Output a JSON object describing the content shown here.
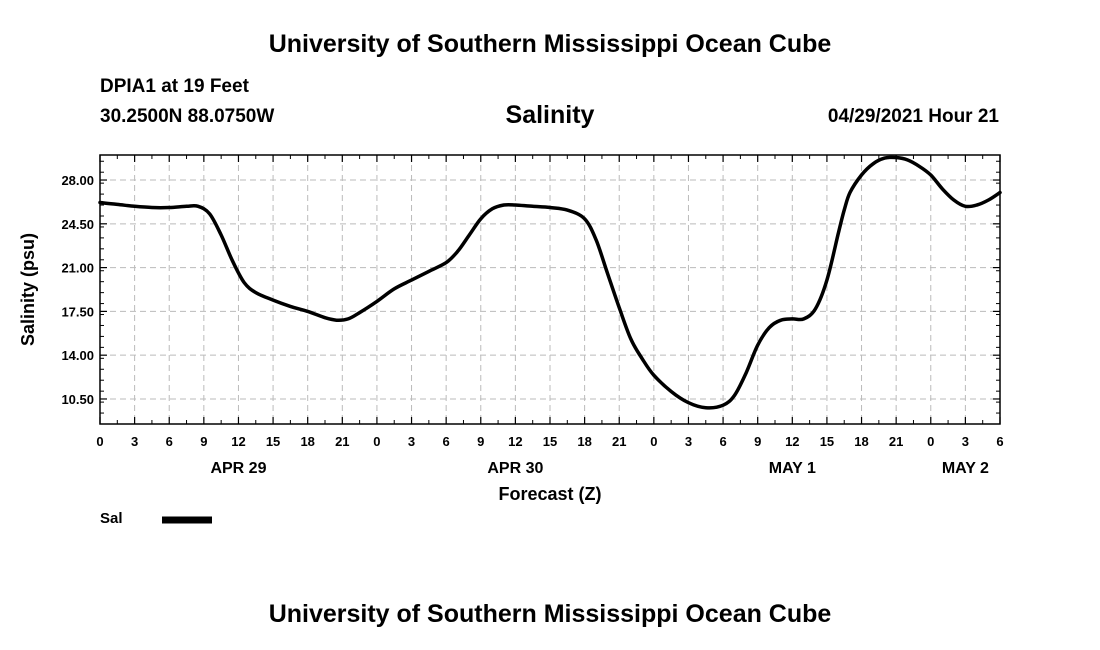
{
  "header": {
    "title_top": "University of Southern Mississippi Ocean Cube",
    "station": "DPIA1 at 19 Feet",
    "coords": "30.2500N  88.0750W",
    "datetime": "04/29/2021 Hour 21"
  },
  "footer": {
    "title_bottom": "University of Southern Mississippi Ocean Cube"
  },
  "legend": {
    "label": "Sal",
    "color": "#000000"
  },
  "chart_data": {
    "type": "line",
    "title": "Salinity",
    "xlabel": "Forecast (Z)",
    "ylabel": "Salinity (psu)",
    "xlim": [
      0,
      78
    ],
    "ylim": [
      8.5,
      30.0
    ],
    "grid": true,
    "line_color": "#000000",
    "x_ticks": [
      0,
      3,
      6,
      9,
      12,
      15,
      18,
      21,
      24,
      27,
      30,
      33,
      36,
      39,
      42,
      45,
      48,
      51,
      54,
      57,
      60,
      63,
      66,
      69,
      72,
      75,
      78
    ],
    "x_tick_labels": [
      "0",
      "3",
      "6",
      "9",
      "12",
      "15",
      "18",
      "21",
      "0",
      "3",
      "6",
      "9",
      "12",
      "15",
      "18",
      "21",
      "0",
      "3",
      "6",
      "9",
      "12",
      "15",
      "18",
      "21",
      "0",
      "3",
      "6"
    ],
    "y_ticks": [
      10.5,
      14.0,
      17.5,
      21.0,
      24.5,
      28.0
    ],
    "y_tick_labels": [
      "10.50",
      "14.00",
      "17.50",
      "21.00",
      "24.50",
      "28.00"
    ],
    "date_labels": [
      {
        "x": 12,
        "label": "APR 29"
      },
      {
        "x": 36,
        "label": "APR 30"
      },
      {
        "x": 60,
        "label": "MAY 1"
      },
      {
        "x": 75,
        "label": "MAY 2"
      }
    ],
    "series": [
      {
        "name": "Sal",
        "x": [
          0,
          1.5,
          3,
          4.5,
          6,
          7.5,
          8.5,
          9.5,
          10.5,
          11.5,
          12.5,
          13.5,
          15,
          16.5,
          18,
          19.5,
          20.5,
          21.5,
          22.5,
          24,
          25.5,
          27,
          28.5,
          30,
          31,
          32,
          33,
          34,
          35,
          36,
          37.5,
          39,
          40.5,
          42,
          43,
          44,
          45,
          46,
          47,
          48,
          49.5,
          51,
          52.5,
          54,
          55,
          56,
          57,
          58,
          59,
          60,
          61,
          62,
          63,
          64,
          64.5,
          65,
          66,
          67,
          68,
          69,
          70,
          71,
          72,
          73,
          74,
          75,
          76,
          77,
          78
        ],
        "values": [
          26.2,
          26.05,
          25.9,
          25.8,
          25.8,
          25.9,
          25.9,
          25.3,
          23.6,
          21.5,
          19.8,
          19.0,
          18.4,
          17.9,
          17.5,
          17.0,
          16.8,
          16.9,
          17.4,
          18.3,
          19.3,
          20.0,
          20.7,
          21.4,
          22.3,
          23.6,
          24.9,
          25.7,
          26.0,
          26.0,
          25.9,
          25.8,
          25.6,
          24.9,
          23.2,
          20.5,
          17.8,
          15.3,
          13.7,
          12.4,
          11.1,
          10.2,
          9.8,
          10.0,
          10.8,
          12.6,
          14.8,
          16.2,
          16.8,
          16.9,
          16.9,
          17.7,
          20.0,
          23.8,
          25.6,
          27.0,
          28.4,
          29.3,
          29.75,
          29.8,
          29.6,
          29.1,
          28.4,
          27.3,
          26.4,
          25.9,
          26.0,
          26.4,
          27.0
        ]
      }
    ]
  }
}
